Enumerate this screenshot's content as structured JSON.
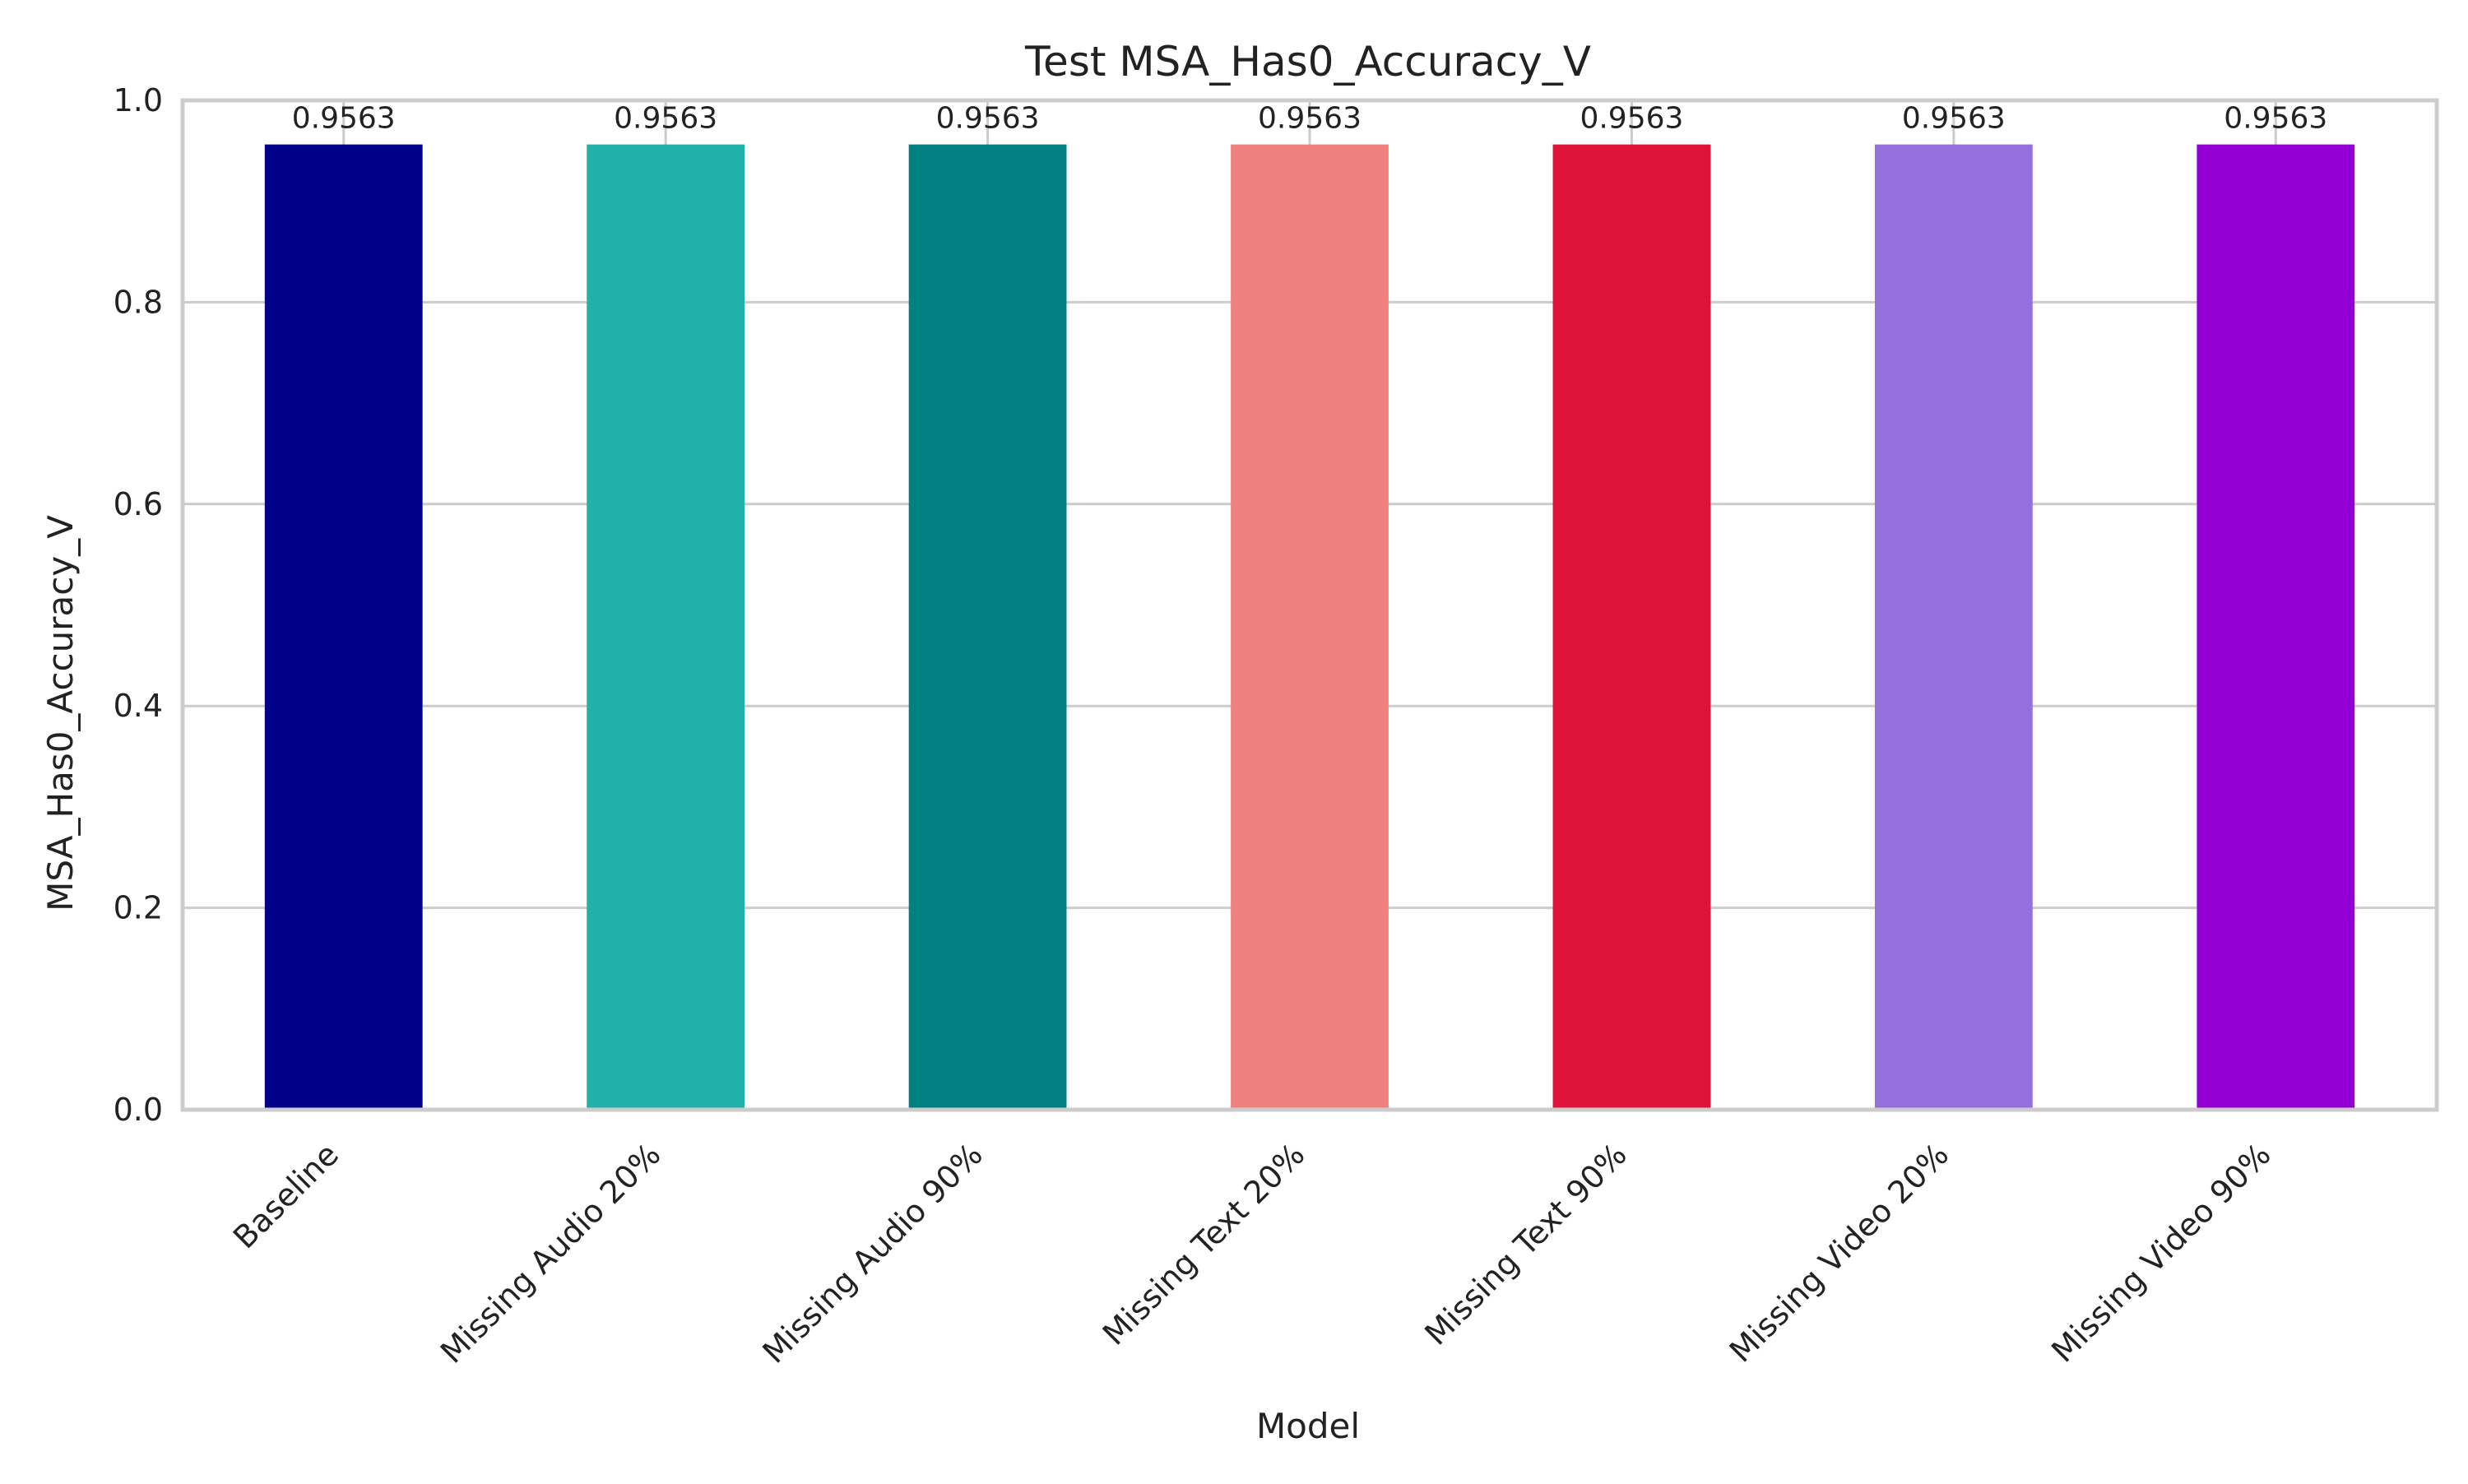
{
  "chart_data": {
    "type": "bar",
    "title": "Test MSA_Has0_Accuracy_V",
    "xlabel": "Model",
    "ylabel": "MSA_Has0_Accuracy_V",
    "categories": [
      "Baseline",
      "Missing Audio 20%",
      "Missing Audio 90%",
      "Missing Text 20%",
      "Missing Text 90%",
      "Missing Video 20%",
      "Missing Video 90%"
    ],
    "values": [
      0.9563,
      0.9563,
      0.9563,
      0.9563,
      0.9563,
      0.9563,
      0.9563
    ],
    "value_labels": [
      "0.9563",
      "0.9563",
      "0.9563",
      "0.9563",
      "0.9563",
      "0.9563",
      "0.9563"
    ],
    "colors": [
      "#00008B",
      "#20B2AA",
      "#008080",
      "#F08080",
      "#DC143C",
      "#9370DB",
      "#9400D3"
    ],
    "ylim": [
      0,
      1.0
    ],
    "yticks": [
      0.0,
      0.2,
      0.4,
      0.6,
      0.8,
      1.0
    ],
    "ytick_labels": [
      "0.0",
      "0.2",
      "0.4",
      "0.6",
      "0.8",
      "1.0"
    ],
    "grid": true,
    "legend": "none"
  }
}
